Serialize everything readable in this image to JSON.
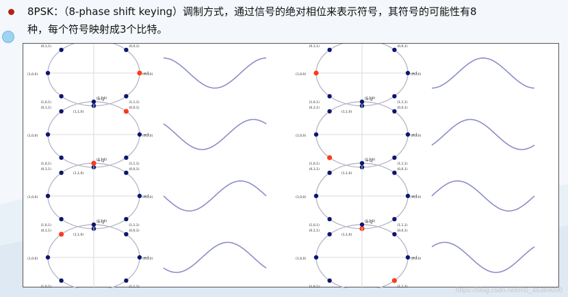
{
  "slide": {
    "line1": "8PSK：（8-phase shift keying）调制方式，通过信号的绝对相位来表示符号，其符号的可能性有8",
    "line2": "种，每个符号映射成3个比特。",
    "watermark": "https://blog.csdn.net/m0_46369000"
  },
  "colors": {
    "point": "#0d1670",
    "active": "#ff3a1a",
    "circle": "#b8b8c8",
    "axis": "#d8d8d8",
    "wave": "#8a8cc8",
    "bullet": "#b02418"
  },
  "constellation": {
    "axis_i": "I",
    "axis_q": "Q",
    "points": [
      {
        "angle_deg": 0,
        "label": "(0,0,0)"
      },
      {
        "angle_deg": 45,
        "label": "(0,0,1)"
      },
      {
        "angle_deg": 90,
        "label": "(0,1,0)"
      },
      {
        "angle_deg": 135,
        "label": "(0,1,1)"
      },
      {
        "angle_deg": 180,
        "label": "(1,0,0)"
      },
      {
        "angle_deg": 225,
        "label": "(1,0,1)"
      },
      {
        "angle_deg": 270,
        "label": "(1,1,0)"
      },
      {
        "angle_deg": 315,
        "label": "(1,1,1)"
      }
    ]
  },
  "panels": [
    {
      "active_angle_deg": 0,
      "wave_phase_deg": 0
    },
    {
      "active_angle_deg": 45,
      "wave_phase_deg": 45
    },
    {
      "active_angle_deg": 90,
      "wave_phase_deg": 90
    },
    {
      "active_angle_deg": 135,
      "wave_phase_deg": 135
    },
    {
      "active_angle_deg": 180,
      "wave_phase_deg": 180
    },
    {
      "active_angle_deg": 225,
      "wave_phase_deg": 225
    },
    {
      "active_angle_deg": 270,
      "wave_phase_deg": 270
    },
    {
      "active_angle_deg": 315,
      "wave_phase_deg": 315
    }
  ]
}
